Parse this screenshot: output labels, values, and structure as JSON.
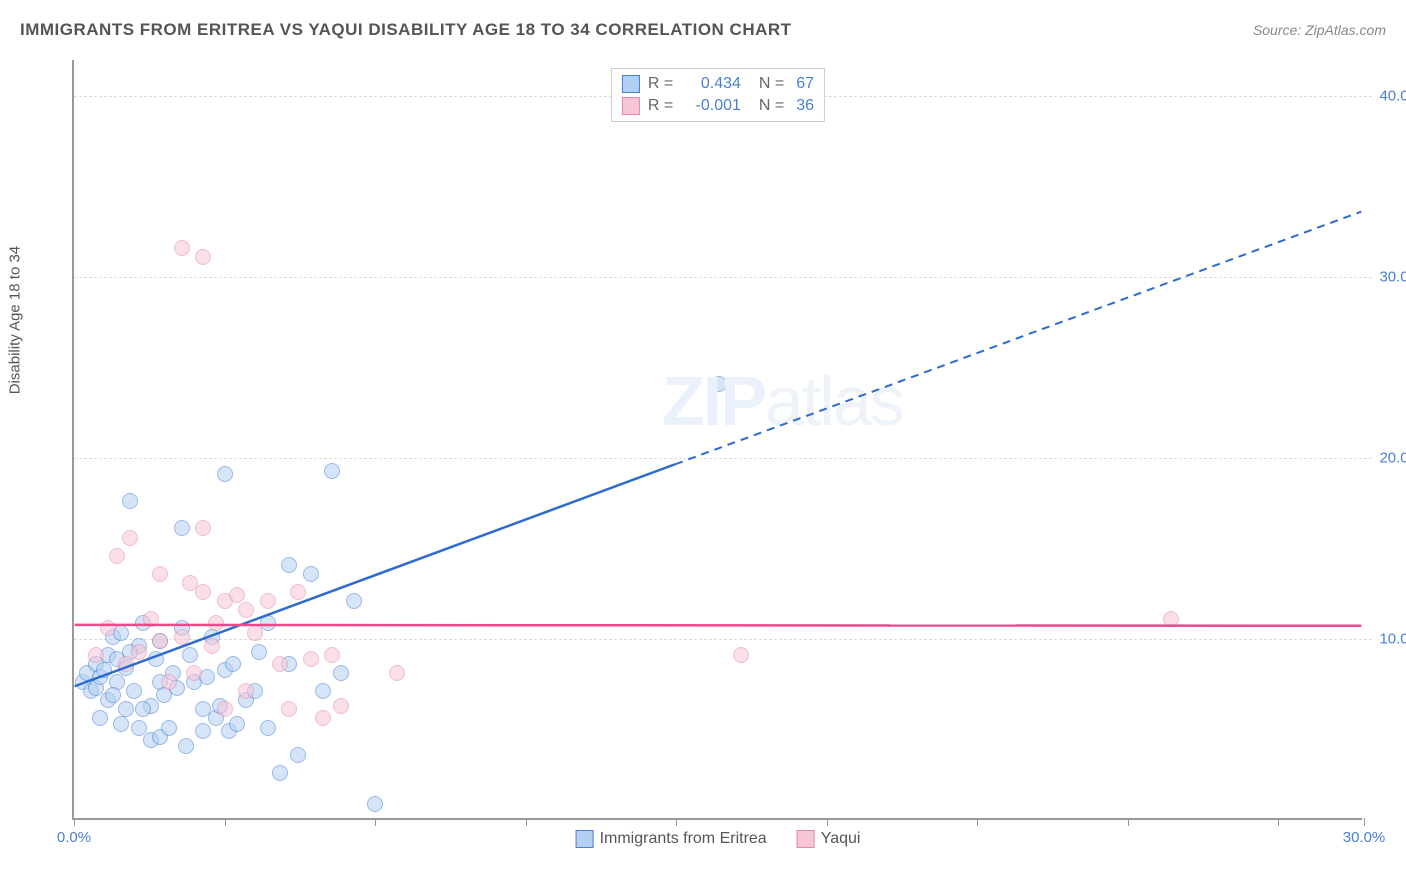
{
  "title": "IMMIGRANTS FROM ERITREA VS YAQUI DISABILITY AGE 18 TO 34 CORRELATION CHART",
  "source_label": "Source: ZipAtlas.com",
  "y_axis_label": "Disability Age 18 to 34",
  "watermark": {
    "zip": "ZIP",
    "atlas": "atlas"
  },
  "chart": {
    "type": "scatter",
    "xlim": [
      0,
      30
    ],
    "ylim": [
      0,
      42
    ],
    "x_ticks": [
      0,
      3.5,
      7,
      10.5,
      14,
      17.5,
      21,
      24.5,
      28,
      30
    ],
    "x_tick_labels": {
      "0": "0.0%",
      "30": "30.0%"
    },
    "y_gridlines": [
      10,
      20,
      30,
      40
    ],
    "y_tick_labels": {
      "10": "10.0%",
      "20": "20.0%",
      "30": "30.0%",
      "40": "40.0%"
    },
    "background_color": "#ffffff",
    "grid_color": "#dddddd",
    "axis_color": "#999999",
    "point_radius": 8,
    "point_opacity": 0.55
  },
  "series": [
    {
      "name": "Immigrants from Eritrea",
      "legend_key": "eritrea",
      "fill_color": "#b3d0f2",
      "stroke_color": "#4a7fd4",
      "line_color": "#2d6bd0",
      "r_value": "0.434",
      "n_value": "67",
      "trend": {
        "x1": 0,
        "y1": 7.3,
        "x2": 14,
        "y2": 19.6,
        "extend_x2": 30,
        "extend_y2": 33.6
      },
      "points": [
        [
          0.2,
          7.5
        ],
        [
          0.3,
          8.0
        ],
        [
          0.4,
          7.0
        ],
        [
          0.5,
          7.2
        ],
        [
          0.5,
          8.5
        ],
        [
          0.6,
          7.8
        ],
        [
          0.7,
          8.2
        ],
        [
          0.8,
          6.5
        ],
        [
          0.8,
          9.0
        ],
        [
          0.9,
          10.0
        ],
        [
          1.0,
          7.5
        ],
        [
          1.0,
          8.8
        ],
        [
          1.1,
          10.2
        ],
        [
          1.2,
          6.0
        ],
        [
          1.2,
          8.3
        ],
        [
          1.3,
          17.5
        ],
        [
          1.4,
          7.0
        ],
        [
          1.5,
          9.5
        ],
        [
          1.5,
          5.0
        ],
        [
          1.6,
          10.8
        ],
        [
          1.8,
          4.3
        ],
        [
          1.8,
          6.2
        ],
        [
          2.0,
          7.5
        ],
        [
          2.0,
          9.8
        ],
        [
          2.0,
          4.5
        ],
        [
          2.2,
          5.0
        ],
        [
          2.3,
          8.0
        ],
        [
          2.5,
          16.0
        ],
        [
          2.5,
          10.5
        ],
        [
          2.6,
          4.0
        ],
        [
          2.8,
          7.5
        ],
        [
          3.0,
          6.0
        ],
        [
          3.0,
          4.8
        ],
        [
          3.2,
          10.0
        ],
        [
          3.3,
          5.5
        ],
        [
          3.5,
          8.2
        ],
        [
          3.5,
          19.0
        ],
        [
          3.6,
          4.8
        ],
        [
          3.8,
          5.2
        ],
        [
          4.0,
          6.5
        ],
        [
          4.2,
          7.0
        ],
        [
          4.5,
          5.0
        ],
        [
          4.5,
          10.8
        ],
        [
          4.8,
          2.5
        ],
        [
          5.0,
          8.5
        ],
        [
          5.0,
          14.0
        ],
        [
          5.2,
          3.5
        ],
        [
          5.5,
          13.5
        ],
        [
          5.8,
          7.0
        ],
        [
          6.0,
          19.2
        ],
        [
          6.2,
          8.0
        ],
        [
          6.5,
          12.0
        ],
        [
          7.0,
          0.8
        ],
        [
          15.0,
          24.0
        ],
        [
          0.6,
          5.5
        ],
        [
          0.9,
          6.8
        ],
        [
          1.1,
          5.2
        ],
        [
          1.3,
          9.2
        ],
        [
          1.6,
          6.0
        ],
        [
          1.9,
          8.8
        ],
        [
          2.1,
          6.8
        ],
        [
          2.4,
          7.2
        ],
        [
          2.7,
          9.0
        ],
        [
          3.1,
          7.8
        ],
        [
          3.4,
          6.2
        ],
        [
          3.7,
          8.5
        ],
        [
          4.3,
          9.2
        ]
      ]
    },
    {
      "name": "Yaqui",
      "legend_key": "yaqui",
      "fill_color": "#f6c6d7",
      "stroke_color": "#e08aa8",
      "line_color": "#e84b8a",
      "r_value": "-0.001",
      "n_value": "36",
      "trend": {
        "x1": 0,
        "y1": 10.7,
        "x2": 30,
        "y2": 10.65
      },
      "points": [
        [
          0.5,
          9.0
        ],
        [
          0.8,
          10.5
        ],
        [
          1.0,
          14.5
        ],
        [
          1.2,
          8.5
        ],
        [
          1.5,
          9.2
        ],
        [
          1.8,
          11.0
        ],
        [
          2.0,
          13.5
        ],
        [
          2.2,
          7.5
        ],
        [
          2.5,
          10.0
        ],
        [
          2.5,
          31.5
        ],
        [
          2.8,
          8.0
        ],
        [
          3.0,
          16.0
        ],
        [
          3.0,
          12.5
        ],
        [
          3.0,
          31.0
        ],
        [
          3.2,
          9.5
        ],
        [
          3.5,
          6.0
        ],
        [
          3.5,
          12.0
        ],
        [
          3.8,
          12.3
        ],
        [
          4.0,
          7.0
        ],
        [
          4.0,
          11.5
        ],
        [
          4.2,
          10.2
        ],
        [
          4.5,
          12.0
        ],
        [
          4.8,
          8.5
        ],
        [
          5.0,
          6.0
        ],
        [
          5.2,
          12.5
        ],
        [
          5.5,
          8.8
        ],
        [
          5.8,
          5.5
        ],
        [
          6.0,
          9.0
        ],
        [
          6.2,
          6.2
        ],
        [
          7.5,
          8.0
        ],
        [
          15.5,
          9.0
        ],
        [
          25.5,
          11.0
        ],
        [
          1.3,
          15.5
        ],
        [
          2.0,
          9.8
        ],
        [
          2.7,
          13.0
        ],
        [
          3.3,
          10.8
        ]
      ]
    }
  ],
  "bottom_legend": [
    {
      "swatch_fill": "#b3d0f2",
      "swatch_stroke": "#4a7fd4",
      "label": "Immigrants from Eritrea"
    },
    {
      "swatch_fill": "#f6c6d7",
      "swatch_stroke": "#e08aa8",
      "label": "Yaqui"
    }
  ],
  "top_legend": {
    "r_label": "R =",
    "n_label": "N ="
  }
}
